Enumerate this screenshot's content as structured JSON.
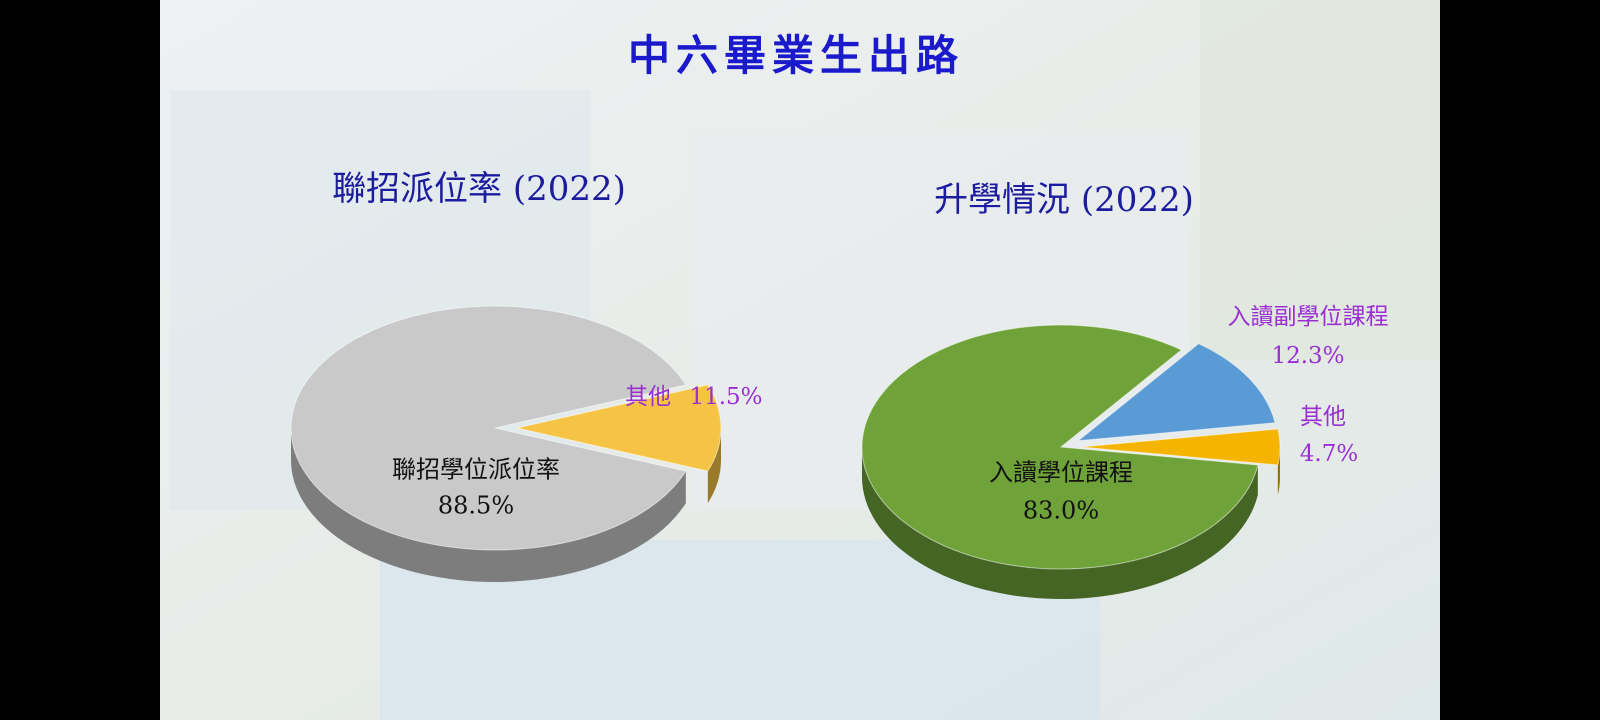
{
  "title": "中六畢業生出路",
  "chart_data": [
    {
      "type": "pie",
      "title": "聯招派位率 (2022)",
      "categories": [
        "聯招學位派位率",
        "其他"
      ],
      "values": [
        88.5,
        11.5
      ],
      "value_labels": [
        "88.5%",
        "11.5%"
      ],
      "colors": [
        "#c9c9c9",
        "#f6c445"
      ]
    },
    {
      "type": "pie",
      "title": "升學情況 (2022)",
      "categories": [
        "入讀學位課程",
        "入讀副學位課程",
        "其他"
      ],
      "values": [
        83.0,
        12.3,
        4.7
      ],
      "value_labels": [
        "83.0%",
        "12.3%",
        "4.7%"
      ],
      "colors": [
        "#6fa33a",
        "#5b9bd5",
        "#f5b400"
      ]
    }
  ]
}
